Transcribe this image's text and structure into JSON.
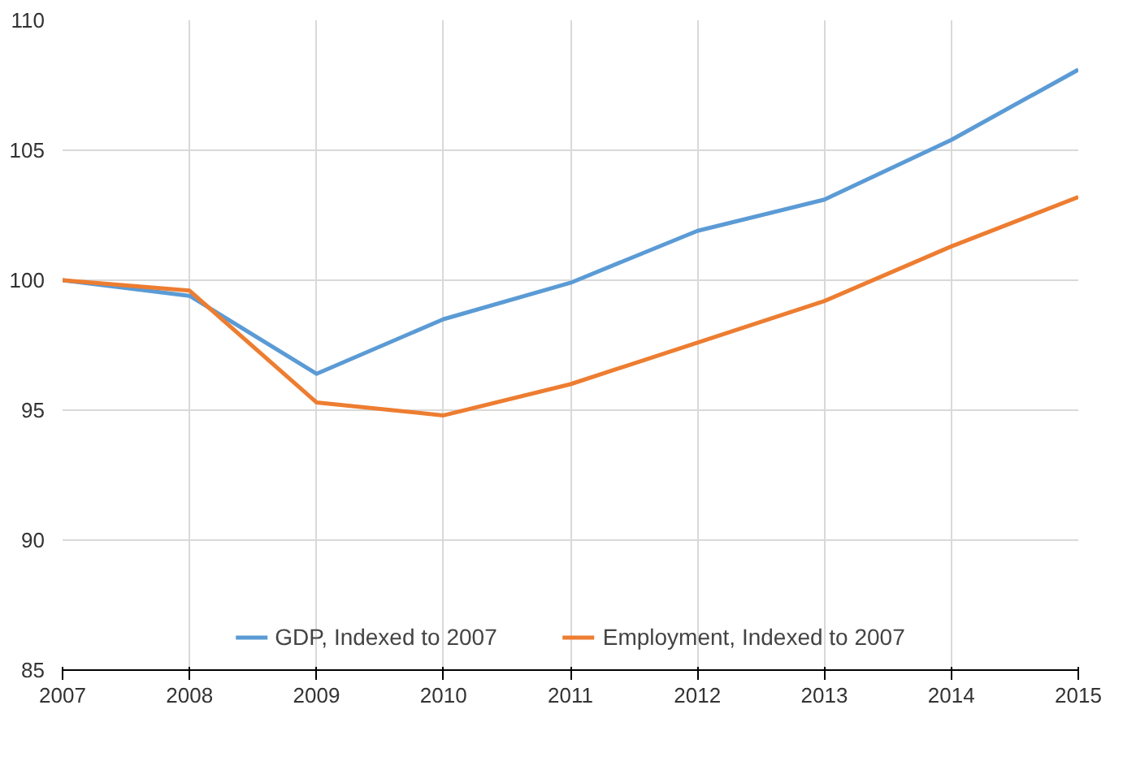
{
  "chart_data": {
    "type": "line",
    "x": [
      2007,
      2008,
      2009,
      2010,
      2011,
      2012,
      2013,
      2014,
      2015
    ],
    "series": [
      {
        "name": "GDP, Indexed to 2007",
        "color": "#5b9bd5",
        "values": [
          100,
          99.4,
          96.4,
          98.5,
          99.9,
          101.9,
          103.1,
          105.4,
          108.1
        ]
      },
      {
        "name": "Employment, Indexed to 2007",
        "color": "#ed7d31",
        "values": [
          100,
          99.6,
          95.3,
          94.8,
          96.0,
          97.6,
          99.2,
          101.3,
          103.2
        ]
      }
    ],
    "xlim": [
      2007,
      2015
    ],
    "xticks": [
      2007,
      2008,
      2009,
      2010,
      2011,
      2012,
      2013,
      2014,
      2015
    ],
    "ylim": [
      85,
      110
    ],
    "yticks": [
      85,
      90,
      95,
      100,
      105,
      110
    ],
    "grid": true,
    "legend": "bottom",
    "marker": "none",
    "line_style": "solid"
  }
}
